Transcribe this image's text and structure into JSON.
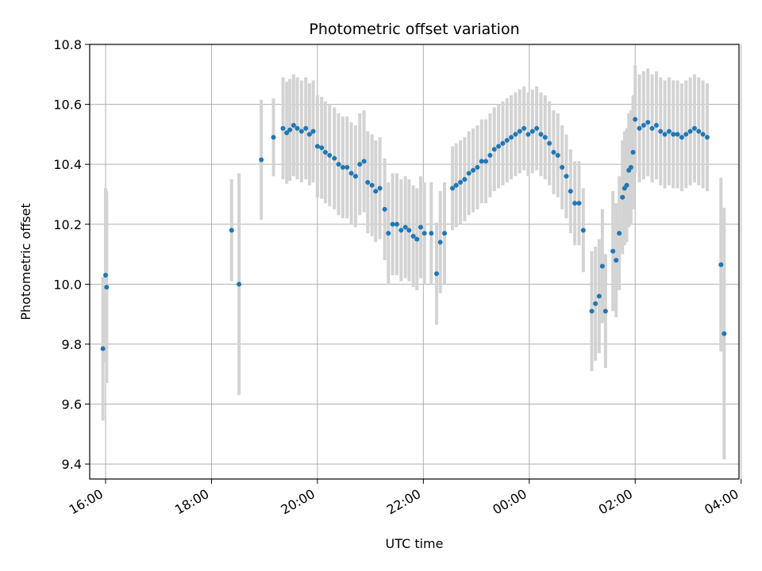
{
  "chart_data": {
    "type": "scatter",
    "title": "Photometric offset variation",
    "xlabel": "UTC time",
    "ylabel": "Photometric offset",
    "x_unit": "hours since 16:00 UTC",
    "xlim": [
      -0.3,
      11.96
    ],
    "ylim": [
      9.35,
      10.8
    ],
    "x_ticks": [
      {
        "pos": 0,
        "label": "16:00"
      },
      {
        "pos": 2,
        "label": "18:00"
      },
      {
        "pos": 4,
        "label": "20:00"
      },
      {
        "pos": 6,
        "label": "22:00"
      },
      {
        "pos": 8,
        "label": "00:00"
      },
      {
        "pos": 10,
        "label": "02:00"
      },
      {
        "pos": 12,
        "label": "04:00"
      }
    ],
    "y_ticks": [
      {
        "value": 9.4,
        "label": "9.4"
      },
      {
        "value": 9.6,
        "label": "9.6"
      },
      {
        "value": 9.8,
        "label": "9.8"
      },
      {
        "value": 10.0,
        "label": "10.0"
      },
      {
        "value": 10.2,
        "label": "10.2"
      },
      {
        "value": 10.4,
        "label": "10.4"
      },
      {
        "value": 10.6,
        "label": "10.6"
      },
      {
        "value": 10.8,
        "label": "10.8"
      }
    ],
    "grid": true,
    "marker_color": "#1f77b4",
    "errorbar_color": "#d3d3d3",
    "points": [
      [
        -0.05,
        9.785,
        0.24
      ],
      [
        0.0,
        10.03,
        0.29
      ],
      [
        0.02,
        9.99,
        0.32
      ],
      [
        2.38,
        10.18,
        0.17
      ],
      [
        2.52,
        10.0,
        0.37
      ],
      [
        2.94,
        10.415,
        0.2
      ],
      [
        3.17,
        10.49,
        0.13
      ],
      [
        3.35,
        10.52,
        0.17
      ],
      [
        3.42,
        10.505,
        0.17
      ],
      [
        3.48,
        10.515,
        0.17
      ],
      [
        3.55,
        10.53,
        0.17
      ],
      [
        3.62,
        10.52,
        0.17
      ],
      [
        3.7,
        10.51,
        0.17
      ],
      [
        3.78,
        10.52,
        0.17
      ],
      [
        3.85,
        10.5,
        0.17
      ],
      [
        3.92,
        10.51,
        0.17
      ],
      [
        4.0,
        10.46,
        0.17
      ],
      [
        4.08,
        10.455,
        0.17
      ],
      [
        4.15,
        10.44,
        0.17
      ],
      [
        4.23,
        10.43,
        0.17
      ],
      [
        4.32,
        10.42,
        0.17
      ],
      [
        4.4,
        10.4,
        0.17
      ],
      [
        4.48,
        10.39,
        0.17
      ],
      [
        4.56,
        10.39,
        0.17
      ],
      [
        4.64,
        10.37,
        0.17
      ],
      [
        4.72,
        10.36,
        0.17
      ],
      [
        4.8,
        10.4,
        0.17
      ],
      [
        4.88,
        10.41,
        0.17
      ],
      [
        4.95,
        10.34,
        0.17
      ],
      [
        5.03,
        10.33,
        0.17
      ],
      [
        5.1,
        10.31,
        0.17
      ],
      [
        5.18,
        10.32,
        0.17
      ],
      [
        5.27,
        10.25,
        0.17
      ],
      [
        5.34,
        10.17,
        0.17
      ],
      [
        5.42,
        10.2,
        0.17
      ],
      [
        5.5,
        10.2,
        0.17
      ],
      [
        5.58,
        10.18,
        0.17
      ],
      [
        5.66,
        10.19,
        0.17
      ],
      [
        5.73,
        10.18,
        0.17
      ],
      [
        5.81,
        10.16,
        0.17
      ],
      [
        5.88,
        10.15,
        0.17
      ],
      [
        5.95,
        10.19,
        0.17
      ],
      [
        6.02,
        10.17,
        0.17
      ],
      [
        6.15,
        10.17,
        0.17
      ],
      [
        6.25,
        10.035,
        0.17
      ],
      [
        6.32,
        10.14,
        0.17
      ],
      [
        6.4,
        10.17,
        0.17
      ],
      [
        6.55,
        10.32,
        0.14
      ],
      [
        6.62,
        10.33,
        0.14
      ],
      [
        6.7,
        10.34,
        0.14
      ],
      [
        6.78,
        10.35,
        0.14
      ],
      [
        6.86,
        10.37,
        0.14
      ],
      [
        6.94,
        10.38,
        0.14
      ],
      [
        7.02,
        10.39,
        0.14
      ],
      [
        7.1,
        10.41,
        0.14
      ],
      [
        7.18,
        10.41,
        0.14
      ],
      [
        7.26,
        10.43,
        0.14
      ],
      [
        7.34,
        10.45,
        0.14
      ],
      [
        7.42,
        10.46,
        0.14
      ],
      [
        7.5,
        10.47,
        0.14
      ],
      [
        7.58,
        10.48,
        0.14
      ],
      [
        7.66,
        10.49,
        0.14
      ],
      [
        7.74,
        10.5,
        0.14
      ],
      [
        7.82,
        10.51,
        0.14
      ],
      [
        7.9,
        10.52,
        0.14
      ],
      [
        7.98,
        10.5,
        0.14
      ],
      [
        8.06,
        10.51,
        0.14
      ],
      [
        8.14,
        10.52,
        0.14
      ],
      [
        8.22,
        10.5,
        0.14
      ],
      [
        8.3,
        10.49,
        0.14
      ],
      [
        8.38,
        10.47,
        0.14
      ],
      [
        8.46,
        10.44,
        0.14
      ],
      [
        8.54,
        10.43,
        0.14
      ],
      [
        8.62,
        10.39,
        0.14
      ],
      [
        8.7,
        10.36,
        0.14
      ],
      [
        8.78,
        10.31,
        0.14
      ],
      [
        8.86,
        10.27,
        0.14
      ],
      [
        8.94,
        10.27,
        0.14
      ],
      [
        9.02,
        10.18,
        0.14
      ],
      [
        9.18,
        9.91,
        0.2
      ],
      [
        9.25,
        9.935,
        0.19
      ],
      [
        9.32,
        9.96,
        0.19
      ],
      [
        9.38,
        10.06,
        0.19
      ],
      [
        9.44,
        9.91,
        0.19
      ],
      [
        9.58,
        10.11,
        0.2
      ],
      [
        9.64,
        10.08,
        0.19
      ],
      [
        9.7,
        10.17,
        0.19
      ],
      [
        9.76,
        10.29,
        0.19
      ],
      [
        9.8,
        10.32,
        0.19
      ],
      [
        9.84,
        10.33,
        0.19
      ],
      [
        9.88,
        10.38,
        0.19
      ],
      [
        9.92,
        10.39,
        0.19
      ],
      [
        9.96,
        10.44,
        0.19
      ],
      [
        10.0,
        10.55,
        0.18
      ],
      [
        10.08,
        10.52,
        0.18
      ],
      [
        10.16,
        10.53,
        0.18
      ],
      [
        10.24,
        10.54,
        0.18
      ],
      [
        10.32,
        10.52,
        0.18
      ],
      [
        10.4,
        10.53,
        0.18
      ],
      [
        10.48,
        10.51,
        0.18
      ],
      [
        10.56,
        10.5,
        0.18
      ],
      [
        10.64,
        10.51,
        0.18
      ],
      [
        10.72,
        10.5,
        0.18
      ],
      [
        10.8,
        10.5,
        0.18
      ],
      [
        10.88,
        10.49,
        0.18
      ],
      [
        10.96,
        10.5,
        0.18
      ],
      [
        11.04,
        10.51,
        0.18
      ],
      [
        11.12,
        10.52,
        0.18
      ],
      [
        11.2,
        10.51,
        0.18
      ],
      [
        11.28,
        10.5,
        0.18
      ],
      [
        11.36,
        10.49,
        0.18
      ],
      [
        11.62,
        10.065,
        0.29
      ],
      [
        11.68,
        9.835,
        0.42
      ]
    ]
  }
}
